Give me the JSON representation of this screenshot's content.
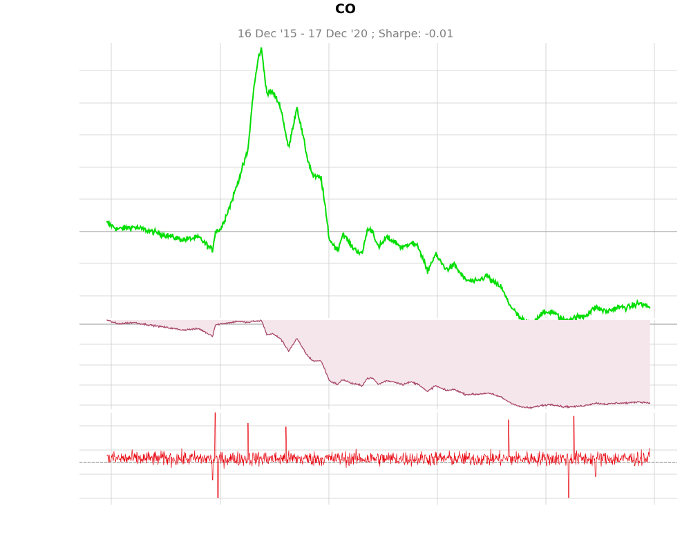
{
  "title": "CO",
  "subtitle": "16 Dec '15 - 17 Dec '20 ;  Sharpe: -0.01",
  "colors": {
    "price_line": "#00dd00",
    "drawdown_line": "#a8476a",
    "drawdown_fill": "#f5e6ec",
    "returns_line": "#e8000b",
    "grid": "#cccccc",
    "baseline": "#aaaaaa",
    "zero_line": "#999999"
  },
  "chart_data": [
    {
      "type": "line",
      "panel": "cumulative-return",
      "series": [
        {
          "x": [
            0,
            0.02,
            0.05,
            0.08,
            0.11,
            0.14,
            0.17,
            0.195,
            0.2,
            0.21,
            0.23,
            0.24,
            0.26,
            0.27,
            0.28,
            0.285,
            0.295,
            0.305,
            0.32,
            0.335,
            0.35,
            0.37,
            0.38,
            0.395,
            0.41,
            0.425,
            0.435,
            0.45,
            0.47,
            0.48,
            0.49,
            0.5,
            0.515,
            0.53,
            0.545,
            0.56,
            0.575,
            0.59,
            0.605,
            0.625,
            0.64,
            0.66,
            0.68,
            0.7,
            0.71,
            0.725,
            0.74,
            0.76,
            0.78,
            0.8,
            0.82,
            0.84,
            0.86,
            0.88,
            0.9,
            0.92,
            0.94,
            0.96,
            0.98,
            1.0
          ],
          "y": [
            1.0,
            0.97,
            0.98,
            0.96,
            0.94,
            0.92,
            0.93,
            0.87,
            0.96,
            0.97,
            1.1,
            1.18,
            1.34,
            1.62,
            1.79,
            1.82,
            1.61,
            1.62,
            1.55,
            1.35,
            1.55,
            1.3,
            1.22,
            1.21,
            0.92,
            0.87,
            0.95,
            0.89,
            0.85,
            0.97,
            0.96,
            0.88,
            0.93,
            0.91,
            0.88,
            0.91,
            0.88,
            0.77,
            0.85,
            0.78,
            0.8,
            0.73,
            0.72,
            0.75,
            0.72,
            0.7,
            0.62,
            0.55,
            0.52,
            0.57,
            0.58,
            0.54,
            0.55,
            0.56,
            0.6,
            0.58,
            0.6,
            0.6,
            0.62,
            0.6
          ]
        }
      ],
      "xlim": [
        -0.05,
        1.05
      ],
      "ylim": [
        0.55,
        1.85
      ],
      "grid": true
    },
    {
      "type": "area",
      "panel": "drawdown",
      "series": [
        {
          "x": [
            0,
            0.02,
            0.05,
            0.08,
            0.11,
            0.14,
            0.17,
            0.195,
            0.2,
            0.21,
            0.23,
            0.24,
            0.26,
            0.27,
            0.28,
            0.285,
            0.295,
            0.305,
            0.32,
            0.335,
            0.35,
            0.37,
            0.38,
            0.395,
            0.41,
            0.425,
            0.435,
            0.45,
            0.47,
            0.48,
            0.49,
            0.5,
            0.515,
            0.53,
            0.545,
            0.56,
            0.575,
            0.59,
            0.605,
            0.625,
            0.64,
            0.66,
            0.68,
            0.7,
            0.71,
            0.725,
            0.74,
            0.76,
            0.78,
            0.8,
            0.82,
            0.84,
            0.86,
            0.88,
            0.9,
            0.92,
            0.94,
            0.96,
            0.98,
            1.0
          ],
          "y": [
            0,
            -0.03,
            -0.02,
            -0.04,
            -0.06,
            -0.08,
            -0.07,
            -0.13,
            -0.04,
            -0.03,
            -0.02,
            -0.01,
            -0.02,
            -0.01,
            -0.01,
            0,
            -0.12,
            -0.11,
            -0.15,
            -0.25,
            -0.15,
            -0.29,
            -0.33,
            -0.33,
            -0.49,
            -0.52,
            -0.48,
            -0.51,
            -0.53,
            -0.47,
            -0.47,
            -0.52,
            -0.49,
            -0.5,
            -0.52,
            -0.5,
            -0.52,
            -0.58,
            -0.53,
            -0.57,
            -0.56,
            -0.6,
            -0.6,
            -0.59,
            -0.6,
            -0.62,
            -0.66,
            -0.7,
            -0.71,
            -0.69,
            -0.68,
            -0.7,
            -0.7,
            -0.69,
            -0.67,
            -0.68,
            -0.67,
            -0.67,
            -0.66,
            -0.67
          ]
        }
      ],
      "xlim": [
        -0.05,
        1.05
      ],
      "ylim": [
        -0.72,
        0
      ],
      "grid": true
    },
    {
      "type": "line",
      "panel": "daily-returns",
      "series": [
        {
          "x": [
            0,
            0.195,
            0.2,
            0.205,
            0.26,
            0.33,
            0.74,
            0.85,
            0.86,
            0.9,
            1.0
          ],
          "y": [
            0.01,
            -0.06,
            0.14,
            -0.11,
            0.1,
            0.09,
            0.11,
            -0.11,
            0.12,
            -0.05,
            0.03
          ]
        }
      ],
      "xlim": [
        -0.05,
        1.05
      ],
      "ylim": [
        -0.13,
        0.13
      ],
      "grid": true
    }
  ]
}
